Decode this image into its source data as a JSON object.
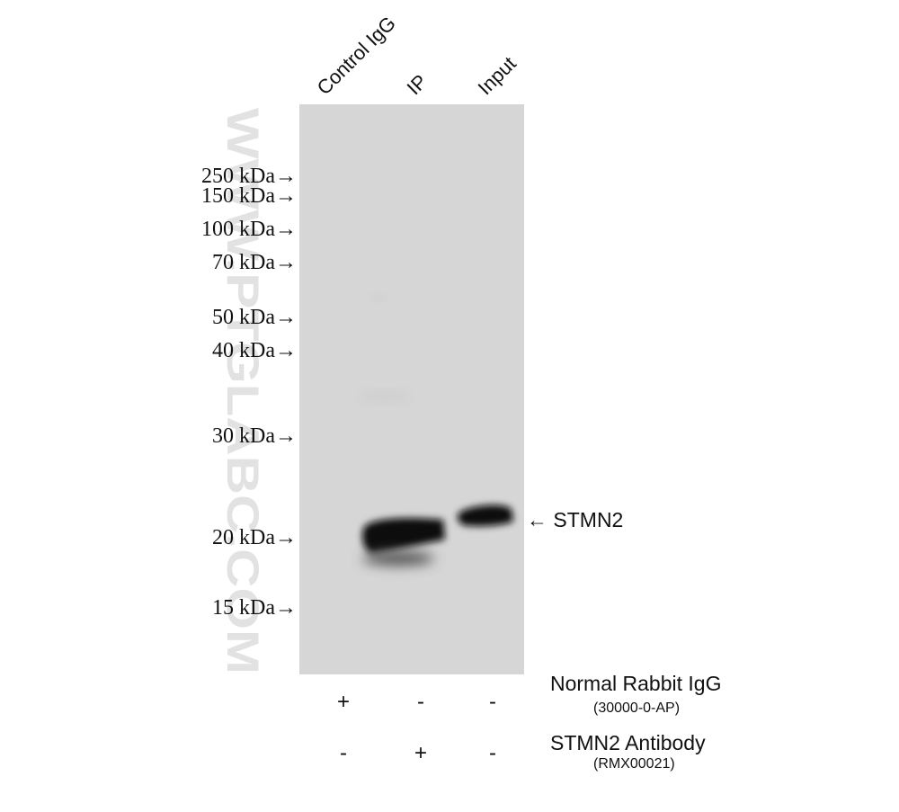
{
  "lanes": [
    {
      "label": "Control IgG"
    },
    {
      "label": "IP"
    },
    {
      "label": "Input"
    }
  ],
  "markers": [
    {
      "label": "250 kDa→"
    },
    {
      "label": "150 kDa→"
    },
    {
      "label": "100 kDa→"
    },
    {
      "label": "70 kDa→"
    },
    {
      "label": "50 kDa→"
    },
    {
      "label": "40 kDa→"
    },
    {
      "label": "30 kDa→"
    },
    {
      "label": "20 kDa→"
    },
    {
      "label": "15 kDa→"
    }
  ],
  "target": {
    "label": "← STMN2"
  },
  "watermark": {
    "text": "WWW.PTGLABC.COM"
  },
  "reagents": [
    {
      "name": "Normal Rabbit IgG",
      "catalog": "(30000-0-AP)",
      "signs": [
        "+",
        "-",
        "-"
      ]
    },
    {
      "name": "STMN2 Antibody",
      "catalog": "(RMX00021)",
      "signs": [
        "-",
        "+",
        "-"
      ]
    }
  ],
  "colors": {
    "membrane": "#d6d6d6",
    "band": "#0a0a0a",
    "watermark": "#e2e2e2"
  }
}
